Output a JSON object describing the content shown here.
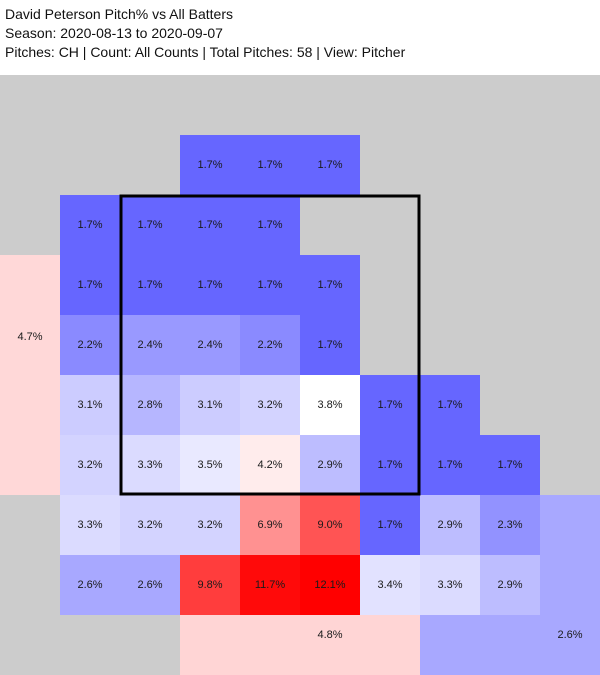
{
  "header": {
    "title": "David Peterson Pitch% vs All Batters",
    "season": "Season: 2020-08-13 to 2020-09-07",
    "summary": "Pitches: CH | Count: All Counts | Total Pitches: 58 | View: Pitcher"
  },
  "chart_data": {
    "type": "heatmap",
    "title": "David Peterson Pitch% vs All Batters",
    "unit": "%",
    "grid": {
      "rows": 9,
      "cols": 10
    },
    "colors": {
      "background": "#cccccc",
      "low": "#6666ff",
      "mid": "#ffffff",
      "high": "#ff0000",
      "strike_zone": "#000000"
    },
    "cells": [
      {
        "row": 1,
        "col": 3,
        "value": 1.7,
        "label": "1.7%"
      },
      {
        "row": 1,
        "col": 4,
        "value": 1.7,
        "label": "1.7%"
      },
      {
        "row": 1,
        "col": 5,
        "value": 1.7,
        "label": "1.7%"
      },
      {
        "row": 2,
        "col": 1,
        "value": 1.7,
        "label": "1.7%"
      },
      {
        "row": 2,
        "col": 2,
        "value": 1.7,
        "label": "1.7%"
      },
      {
        "row": 2,
        "col": 3,
        "value": 1.7,
        "label": "1.7%"
      },
      {
        "row": 2,
        "col": 4,
        "value": 1.7,
        "label": "1.7%"
      },
      {
        "row": 3,
        "col": 1,
        "value": 1.7,
        "label": "1.7%"
      },
      {
        "row": 3,
        "col": 2,
        "value": 1.7,
        "label": "1.7%"
      },
      {
        "row": 3,
        "col": 3,
        "value": 1.7,
        "label": "1.7%"
      },
      {
        "row": 3,
        "col": 4,
        "value": 1.7,
        "label": "1.7%"
      },
      {
        "row": 3,
        "col": 5,
        "value": 1.7,
        "label": "1.7%"
      },
      {
        "row": 4,
        "col": 1,
        "value": 2.2,
        "label": "2.2%"
      },
      {
        "row": 4,
        "col": 2,
        "value": 2.4,
        "label": "2.4%"
      },
      {
        "row": 4,
        "col": 3,
        "value": 2.4,
        "label": "2.4%"
      },
      {
        "row": 4,
        "col": 4,
        "value": 2.2,
        "label": "2.2%"
      },
      {
        "row": 4,
        "col": 5,
        "value": 1.7,
        "label": "1.7%"
      },
      {
        "row": 5,
        "col": 1,
        "value": 3.1,
        "label": "3.1%"
      },
      {
        "row": 5,
        "col": 2,
        "value": 2.8,
        "label": "2.8%"
      },
      {
        "row": 5,
        "col": 3,
        "value": 3.1,
        "label": "3.1%"
      },
      {
        "row": 5,
        "col": 4,
        "value": 3.2,
        "label": "3.2%"
      },
      {
        "row": 5,
        "col": 5,
        "value": 3.8,
        "label": "3.8%"
      },
      {
        "row": 5,
        "col": 6,
        "value": 1.7,
        "label": "1.7%"
      },
      {
        "row": 5,
        "col": 7,
        "value": 1.7,
        "label": "1.7%"
      },
      {
        "row": 6,
        "col": 1,
        "value": 3.2,
        "label": "3.2%"
      },
      {
        "row": 6,
        "col": 2,
        "value": 3.3,
        "label": "3.3%"
      },
      {
        "row": 6,
        "col": 3,
        "value": 3.5,
        "label": "3.5%"
      },
      {
        "row": 6,
        "col": 4,
        "value": 4.2,
        "label": "4.2%"
      },
      {
        "row": 6,
        "col": 5,
        "value": 2.9,
        "label": "2.9%"
      },
      {
        "row": 6,
        "col": 6,
        "value": 1.7,
        "label": "1.7%"
      },
      {
        "row": 6,
        "col": 7,
        "value": 1.7,
        "label": "1.7%"
      },
      {
        "row": 6,
        "col": 8,
        "value": 1.7,
        "label": "1.7%"
      },
      {
        "row": 7,
        "col": 1,
        "value": 3.3,
        "label": "3.3%"
      },
      {
        "row": 7,
        "col": 2,
        "value": 3.2,
        "label": "3.2%"
      },
      {
        "row": 7,
        "col": 3,
        "value": 3.2,
        "label": "3.2%"
      },
      {
        "row": 7,
        "col": 4,
        "value": 6.9,
        "label": "6.9%"
      },
      {
        "row": 7,
        "col": 5,
        "value": 9.0,
        "label": "9.0%"
      },
      {
        "row": 7,
        "col": 6,
        "value": 1.7,
        "label": "1.7%"
      },
      {
        "row": 7,
        "col": 7,
        "value": 2.9,
        "label": "2.9%"
      },
      {
        "row": 7,
        "col": 8,
        "value": 2.3,
        "label": "2.3%"
      },
      {
        "row": 8,
        "col": 1,
        "value": 2.6,
        "label": "2.6%"
      },
      {
        "row": 8,
        "col": 2,
        "value": 2.6,
        "label": "2.6%"
      },
      {
        "row": 8,
        "col": 3,
        "value": 9.8,
        "label": "9.8%"
      },
      {
        "row": 8,
        "col": 4,
        "value": 11.7,
        "label": "11.7%"
      },
      {
        "row": 8,
        "col": 5,
        "value": 12.1,
        "label": "12.1%"
      },
      {
        "row": 8,
        "col": 6,
        "value": 3.4,
        "label": "3.4%"
      },
      {
        "row": 8,
        "col": 7,
        "value": 3.3,
        "label": "3.3%"
      },
      {
        "row": 8,
        "col": 8,
        "value": 2.9,
        "label": "2.9%"
      }
    ],
    "outer_regions": [
      {
        "name": "left",
        "value": 4.7,
        "label": "4.7%"
      },
      {
        "name": "bottom",
        "value": 4.8,
        "label": "4.8%"
      },
      {
        "name": "bottom-right",
        "value": 2.6,
        "label": "2.6%"
      }
    ],
    "strike_zone": {
      "row_start": 2,
      "row_end": 7,
      "col_start": 2,
      "col_end": 7
    }
  }
}
